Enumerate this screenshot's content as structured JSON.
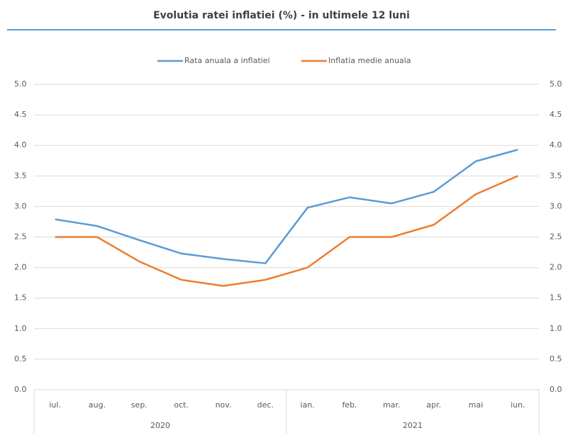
{
  "chart_data": {
    "type": "line",
    "title": "Evolutia ratei inflatiei (%) - in ultimele 12 luni",
    "categories": [
      "iul.",
      "aug.",
      "sep.",
      "oct.",
      "nov.",
      "dec.",
      "ian.",
      "feb.",
      "mar.",
      "apr.",
      "mai",
      "iun."
    ],
    "category_groups": [
      {
        "label": "2020",
        "count": 6
      },
      {
        "label": "2021",
        "count": 6
      }
    ],
    "series": [
      {
        "name": "Rata anuala a inflatiei",
        "color": "#5b9bd5",
        "values": [
          2.79,
          2.68,
          2.45,
          2.23,
          2.14,
          2.07,
          2.98,
          3.15,
          3.05,
          3.24,
          3.74,
          3.93
        ]
      },
      {
        "name": "Inflatia medie anuala",
        "color": "#ed7d31",
        "values": [
          2.5,
          2.5,
          2.1,
          1.8,
          1.7,
          1.8,
          2.0,
          2.5,
          2.5,
          2.7,
          3.2,
          3.5
        ]
      }
    ],
    "ylim": [
      0,
      5
    ],
    "yticks": [
      {
        "value": 0,
        "label": "0.0"
      },
      {
        "value": 0.5,
        "label": "0.5"
      },
      {
        "value": 1,
        "label": "1.0"
      },
      {
        "value": 1.5,
        "label": "1.5"
      },
      {
        "value": 2,
        "label": "2.0"
      },
      {
        "value": 2.5,
        "label": "2.5"
      },
      {
        "value": 3,
        "label": "3.0"
      },
      {
        "value": 3.5,
        "label": "3.5"
      },
      {
        "value": 4,
        "label": "4.0"
      },
      {
        "value": 4.5,
        "label": "4.5"
      },
      {
        "value": 5,
        "label": "5.0"
      }
    ],
    "y2lim": [
      0,
      5
    ],
    "y2ticks": [
      {
        "value": 0,
        "label": "0.0"
      },
      {
        "value": 0.5,
        "label": "0.5"
      },
      {
        "value": 1,
        "label": "1.0"
      },
      {
        "value": 1.5,
        "label": "1.5"
      },
      {
        "value": 2,
        "label": "2.0"
      },
      {
        "value": 2.5,
        "label": "2.5"
      },
      {
        "value": 3,
        "label": "3.0"
      },
      {
        "value": 3.5,
        "label": "3.5"
      },
      {
        "value": 4,
        "label": "4.0"
      },
      {
        "value": 4.5,
        "label": "4.5"
      },
      {
        "value": 5,
        "label": "5.0"
      }
    ],
    "grid": true,
    "legend": "top"
  }
}
